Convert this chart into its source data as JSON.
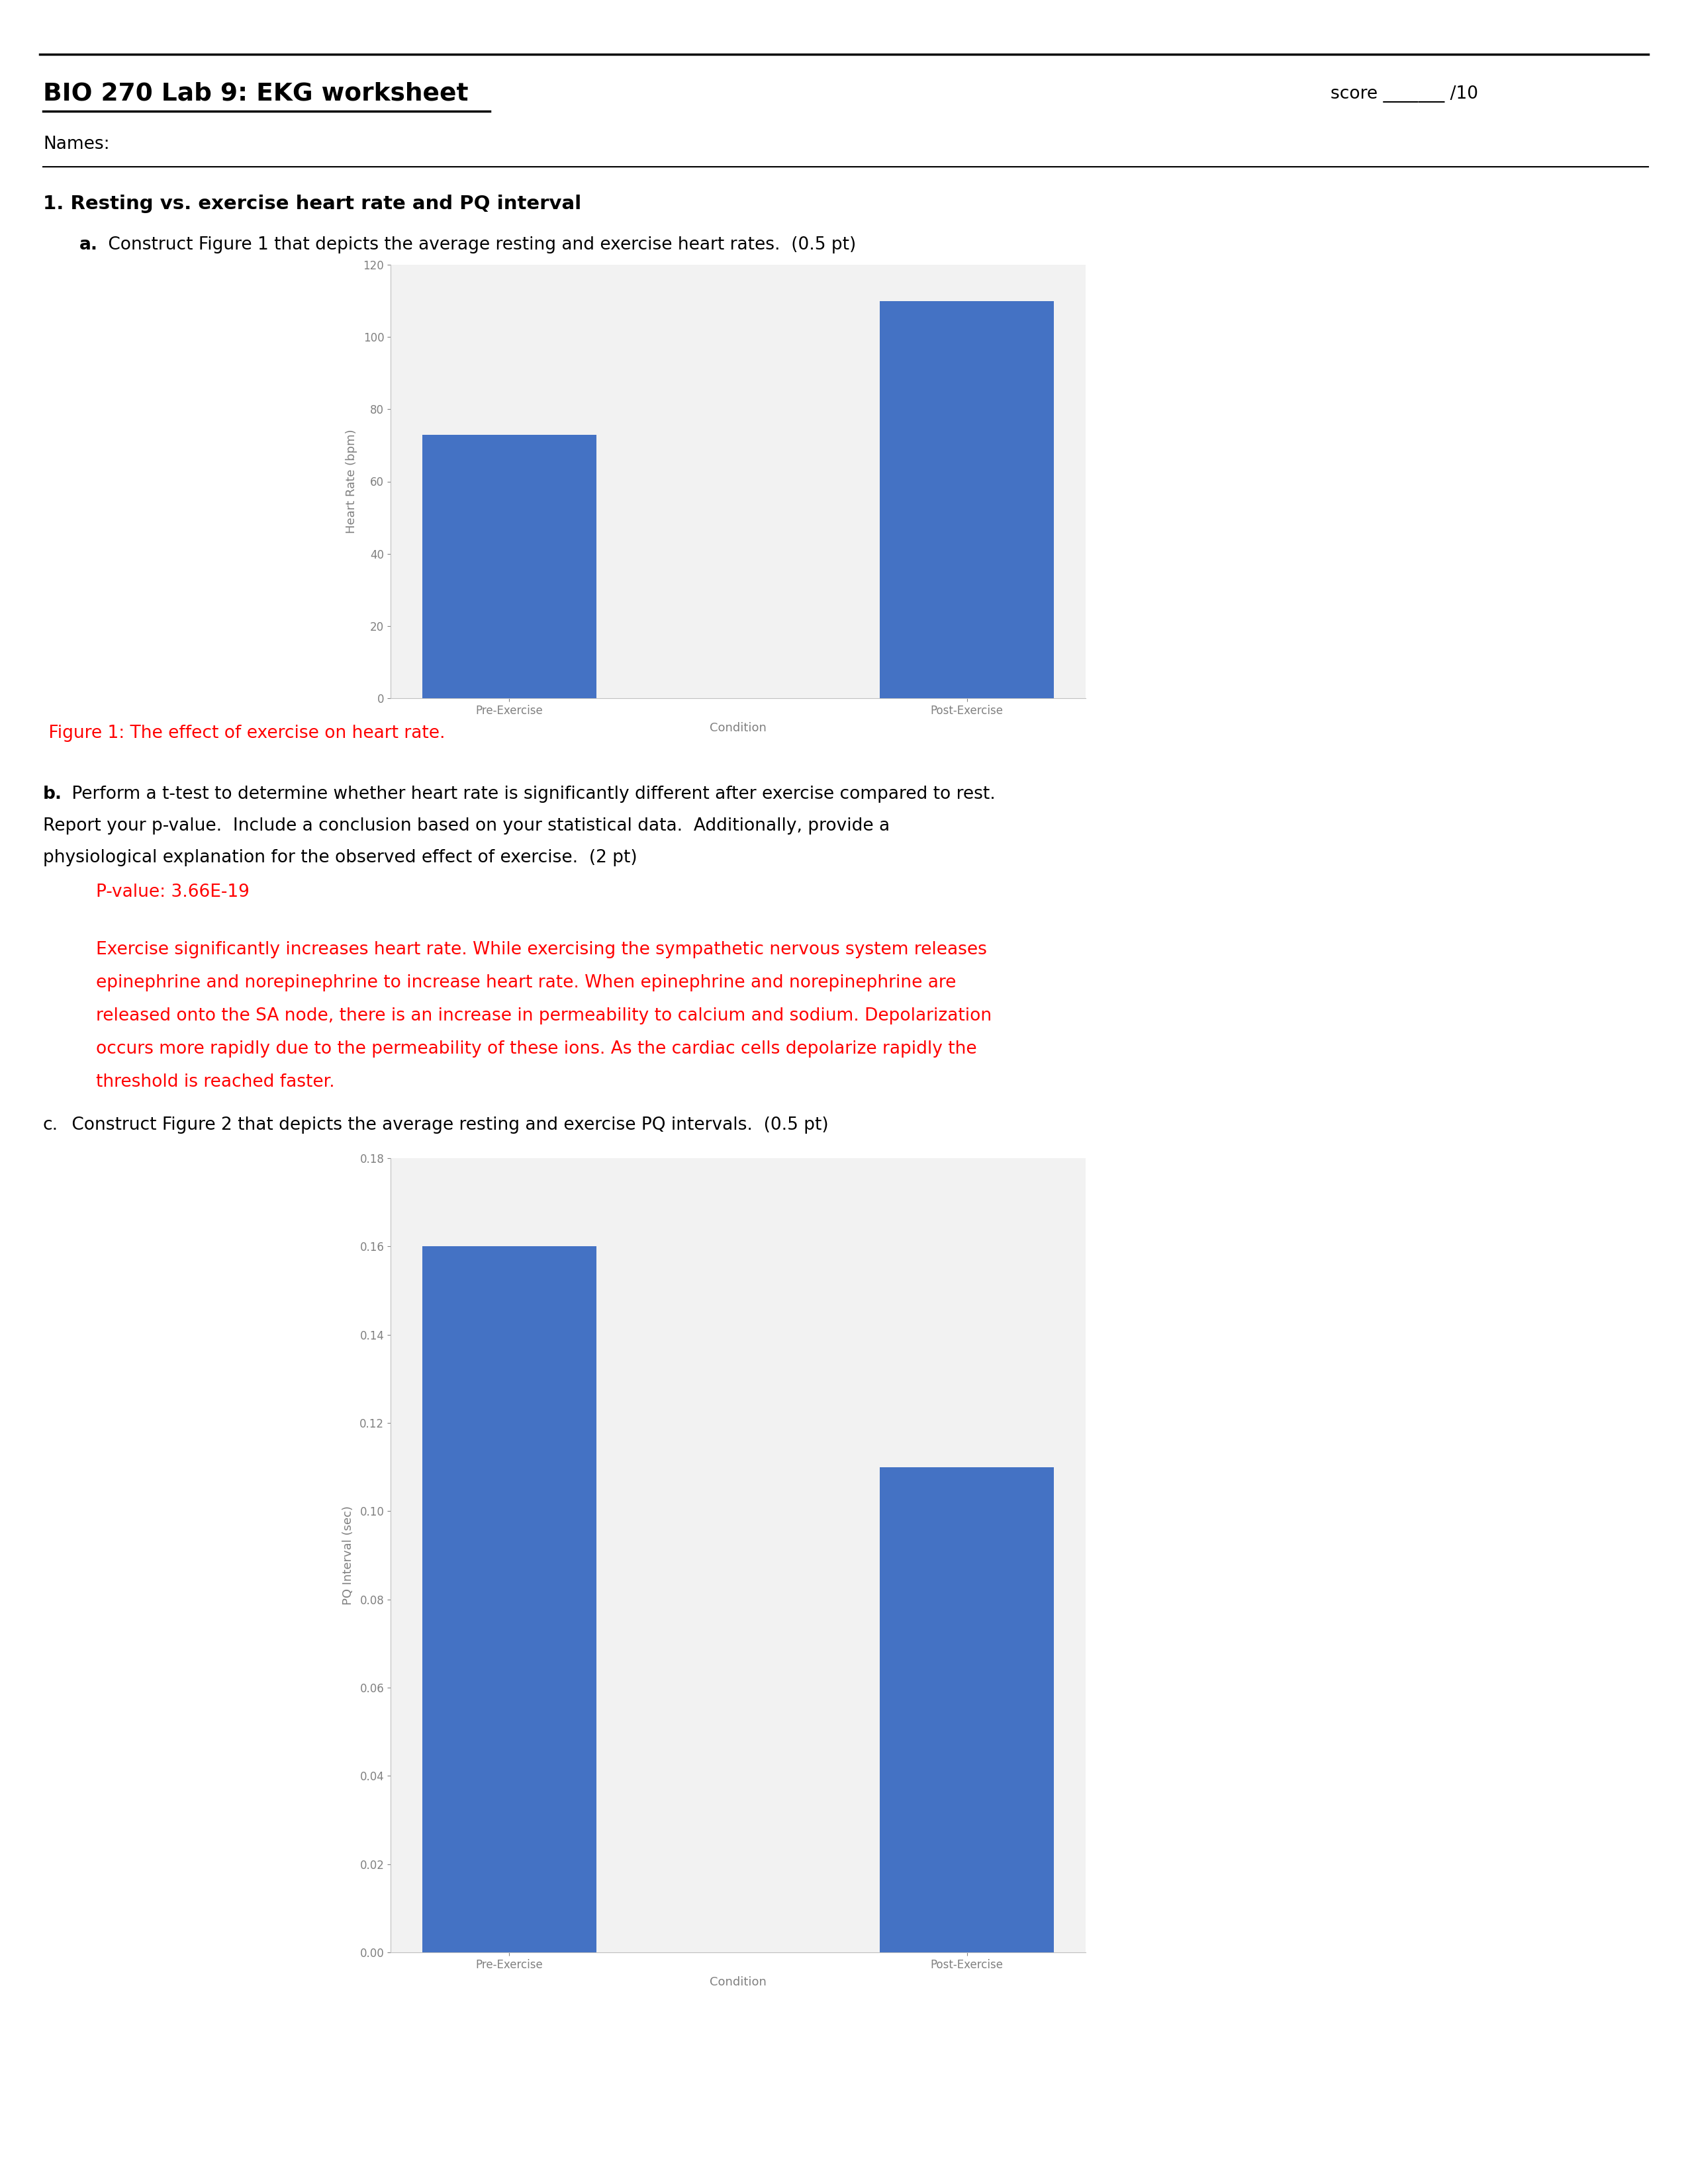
{
  "title": "BIO 270 Lab 9: EKG worksheet",
  "score_text": "score _______ /10",
  "names_label": "Names:",
  "section1_title": "1. Resting vs. exercise heart rate and PQ interval",
  "part_a_bold": "a.",
  "part_a_rest": " Construct Figure 1 that depicts the average resting and exercise heart rates.  (0.5 pt)",
  "chart1_categories": [
    "Pre-Exercise",
    "Post-Exercise"
  ],
  "chart1_values": [
    73,
    110
  ],
  "chart1_ylabel": "Heart Rate (bpm)",
  "chart1_xlabel": "Condition",
  "chart1_ylim": [
    0,
    120
  ],
  "chart1_yticks": [
    0,
    20,
    40,
    60,
    80,
    100,
    120
  ],
  "chart1_bar_color": "#4472C4",
  "fig1_caption": " Figure 1: The effect of exercise on heart rate.",
  "part_b_bold": "b.",
  "part_b_line1": " Perform a t-test to determine whether heart rate is significantly different after exercise compared to rest.",
  "part_b_line2": "Report your p-value.  Include a conclusion based on your statistical data.  Additionally, provide a",
  "part_b_line3": "physiological explanation for the observed effect of exercise.  (2 pt)",
  "pvalue_text": "P-value: 3.66E-19",
  "exp_line1": "Exercise significantly increases heart rate. While exercising the sympathetic nervous system releases",
  "exp_line2": "epinephrine and norepinephrine to increase heart rate. When epinephrine and norepinephrine are",
  "exp_line3": "released onto the SA node, there is an increase in permeability to calcium and sodium. Depolarization",
  "exp_line4": "occurs more rapidly due to the permeability of these ions. As the cardiac cells depolarize rapidly the",
  "exp_line5": "threshold is reached faster.",
  "part_c_bold": "c.",
  "part_c_rest": " Construct Figure 2 that depicts the average resting and exercise PQ intervals.  (0.5 pt)",
  "chart2_categories": [
    "Pre-Exercise",
    "Post-Exercise"
  ],
  "chart2_values": [
    0.16,
    0.11
  ],
  "chart2_ylabel": "PQ Interval (sec)",
  "chart2_xlabel": "Condition",
  "chart2_ylim": [
    0,
    0.18
  ],
  "chart2_yticks": [
    0.0,
    0.02,
    0.04,
    0.06,
    0.08,
    0.1,
    0.12,
    0.14,
    0.16,
    0.18
  ],
  "chart2_bar_color": "#4472C4",
  "red_color": "#FF0000",
  "black_color": "#000000",
  "bg_color": "#FFFFFF",
  "chart_bg_color": "#F2F2F2",
  "page_width": 25.5,
  "page_height": 33.0
}
